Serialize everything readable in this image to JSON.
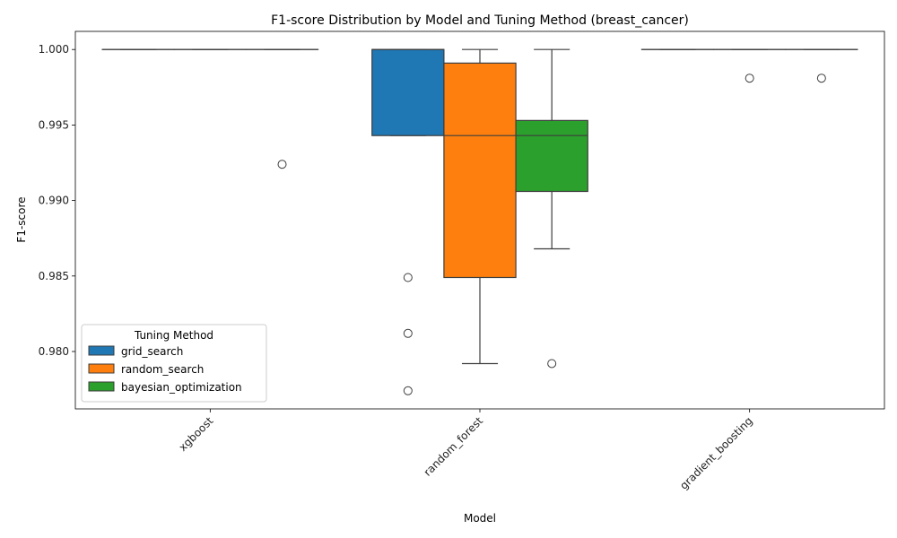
{
  "chart_data": {
    "type": "box",
    "title": "F1-score Distribution by Model and Tuning Method (breast_cancer)",
    "xlabel": "Model",
    "ylabel": "F1-score",
    "ylim": [
      0.9762,
      1.0012
    ],
    "yticks": [
      "0.980",
      "0.985",
      "0.990",
      "0.995",
      "1.000"
    ],
    "ytick_values": [
      0.98,
      0.985,
      0.99,
      0.995,
      1.0
    ],
    "categories": [
      "xgboost",
      "random_forest",
      "gradient_boosting"
    ],
    "xtick_rotation": 45,
    "grid": false,
    "legend": {
      "title": "Tuning Method",
      "position": "lower-left"
    },
    "series": [
      {
        "name": "grid_search",
        "color": "#1f77b4",
        "boxes": [
          {
            "q1": 1.0,
            "median": 1.0,
            "q3": 1.0,
            "whislo": 1.0,
            "whishi": 1.0,
            "outliers": []
          },
          {
            "q1": 0.9943,
            "median": 1.0,
            "q3": 1.0,
            "whislo": 0.9943,
            "whishi": 1.0,
            "outliers": [
              0.9849,
              0.9812,
              0.9774
            ]
          },
          {
            "q1": 1.0,
            "median": 1.0,
            "q3": 1.0,
            "whislo": 1.0,
            "whishi": 1.0,
            "outliers": []
          }
        ]
      },
      {
        "name": "random_search",
        "color": "#ff7f0e",
        "boxes": [
          {
            "q1": 1.0,
            "median": 1.0,
            "q3": 1.0,
            "whislo": 1.0,
            "whishi": 1.0,
            "outliers": []
          },
          {
            "q1": 0.9849,
            "median": 0.9943,
            "q3": 0.9991,
            "whislo": 0.9792,
            "whishi": 1.0,
            "outliers": []
          },
          {
            "q1": 1.0,
            "median": 1.0,
            "q3": 1.0,
            "whislo": 1.0,
            "whishi": 1.0,
            "outliers": [
              0.9981
            ]
          }
        ]
      },
      {
        "name": "bayesian_optimization",
        "color": "#2ca02c",
        "boxes": [
          {
            "q1": 1.0,
            "median": 1.0,
            "q3": 1.0,
            "whislo": 1.0,
            "whishi": 1.0,
            "outliers": [
              0.9924
            ]
          },
          {
            "q1": 0.9906,
            "median": 0.9943,
            "q3": 0.9953,
            "whislo": 0.9868,
            "whishi": 1.0,
            "outliers": [
              0.9792
            ]
          },
          {
            "q1": 1.0,
            "median": 1.0,
            "q3": 1.0,
            "whislo": 1.0,
            "whishi": 1.0,
            "outliers": [
              0.9981
            ]
          }
        ]
      }
    ]
  }
}
